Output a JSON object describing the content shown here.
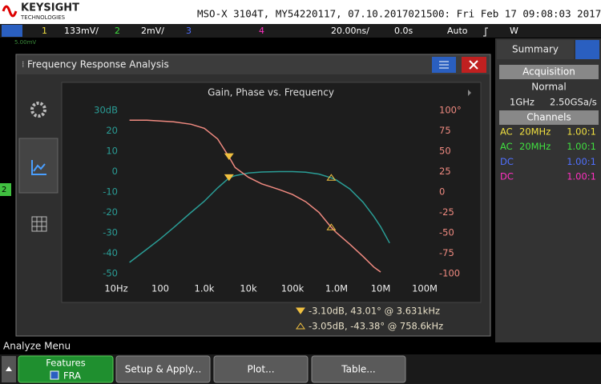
{
  "header": {
    "brand": "KEYSIGHT",
    "brand_sub": "TECHNOLOGIES",
    "title": "MSO-X 3104T, MY54220117, 07.10.2017021500: Fri Feb 17 09:08:03 2017"
  },
  "status_bar": {
    "ch1": "1",
    "ch1_scale": "133mV/",
    "ch2": "2",
    "ch2_scale": "2mV/",
    "ch3": "3",
    "ch4": "4",
    "timebase": "20.00ns/",
    "delay": "0.0s",
    "trigger_mode": "Auto",
    "trigger_type": "W"
  },
  "scope": {
    "scale_note": "5.00mV",
    "ch2_marker": "2"
  },
  "dialog": {
    "title": "Frequency Response Analysis"
  },
  "chart_data": {
    "type": "line",
    "title": "Gain, Phase vs. Frequency",
    "log_x": true,
    "x": [
      20,
      50,
      100,
      200,
      500,
      1000,
      2000,
      3631,
      5000,
      10000,
      20000,
      50000,
      100000,
      200000,
      400000,
      758600,
      1000000,
      2000000,
      4000000,
      7000000,
      10000000,
      16000000
    ],
    "xlim": [
      10,
      100000000
    ],
    "xticks": [
      {
        "value": 10,
        "label": "10Hz"
      },
      100,
      {
        "value": 1000,
        "label": "1.0k"
      },
      {
        "value": 10000,
        "label": "10k"
      },
      {
        "value": 100000,
        "label": "100k"
      },
      {
        "value": 1000000,
        "label": "1.0M"
      },
      {
        "value": 10000000,
        "label": "10M"
      },
      {
        "value": 100000000,
        "label": "100M"
      }
    ],
    "ylim": [
      -50,
      30
    ],
    "yticks": [
      -50,
      -40,
      -30,
      -20,
      -10,
      0,
      10,
      20,
      {
        "value": 30,
        "label": "30dB"
      }
    ],
    "y2lim": [
      -100,
      100
    ],
    "y2ticks": [
      -100,
      -75,
      -50,
      -25,
      0,
      25,
      50,
      75,
      {
        "value": 100,
        "label": "100°"
      }
    ],
    "series": [
      {
        "name": "Gain",
        "color": "#2a9d96",
        "values": [
          -44.5,
          -38,
          -33,
          -27.5,
          -20,
          -14.5,
          -8,
          -3.1,
          -2,
          -0.7,
          -0.2,
          0,
          0,
          -0.3,
          -1.2,
          -3.05,
          -4.2,
          -8.5,
          -15,
          -22,
          -27,
          -35
        ]
      },
      {
        "name": "Phase",
        "color": "#f08a80",
        "axis": "y2",
        "values": [
          88,
          88,
          87,
          86,
          83,
          78,
          65,
          43.01,
          30,
          18,
          10,
          3,
          -3,
          -12,
          -25,
          -43.38,
          -50,
          -64,
          -79,
          -92,
          -98,
          null
        ]
      }
    ],
    "markers": [
      {
        "x": 3631,
        "gain": -3.1,
        "phase": 43.01,
        "readout": "-3.10dB, 43.01° @ 3.631kHz"
      },
      {
        "x": 758600,
        "gain": -3.05,
        "phase": -43.38,
        "readout": "-3.05dB, -43.38° @ 758.6kHz"
      }
    ]
  },
  "sidebar": {
    "tab": "Summary",
    "acquisition_header": "Acquisition",
    "mode": "Normal",
    "bandwidth": "1GHz",
    "sample_rate": "2.50GSa/s",
    "channels_header": "Channels",
    "channels": [
      {
        "coupling": "AC",
        "bw": "20MHz",
        "probe": "1.00:1",
        "color": "#f0e040"
      },
      {
        "coupling": "AC",
        "bw": "20MHz",
        "probe": "1.00:1",
        "color": "#40e040"
      },
      {
        "coupling": "DC",
        "probe": "1.00:1",
        "color": "#5070ff"
      },
      {
        "coupling": "DC",
        "probe": "1.00:1",
        "color": "#ff30c0"
      }
    ]
  },
  "menu": {
    "title": "Analyze Menu",
    "features_label": "Features",
    "features_value": "FRA",
    "buttons": [
      "Setup & Apply...",
      "Plot...",
      "Table..."
    ]
  }
}
